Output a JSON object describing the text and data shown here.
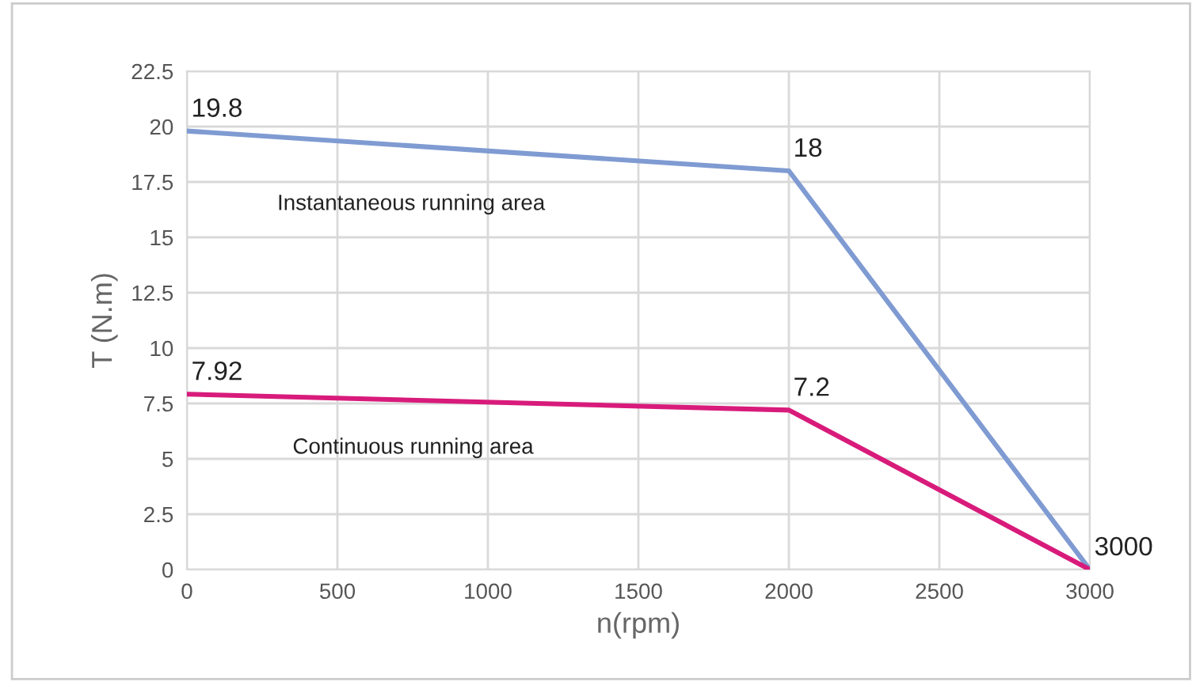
{
  "chart_data": {
    "type": "line",
    "xlabel": "n(rpm)",
    "ylabel": "T (N.m)",
    "x": [
      0,
      2000,
      3000
    ],
    "series": [
      {
        "color": "#7f9bd2",
        "values": [
          19.8,
          18,
          0
        ]
      },
      {
        "color": "#d81b7b",
        "values": [
          7.92,
          7.2,
          0
        ]
      }
    ],
    "xlim": [
      0,
      3000
    ],
    "xticks": [
      0,
      500,
      1000,
      1500,
      2000,
      2500,
      3000
    ],
    "ylim": [
      0,
      22.5
    ],
    "yticks": [
      0,
      2.5,
      5,
      7.5,
      10,
      12.5,
      15,
      17.5,
      20,
      22.5
    ],
    "grid": true,
    "marker": "none",
    "line_style": "solid",
    "annotations": [
      {
        "text": "19.8",
        "x": 0,
        "y": 19.8
      },
      {
        "text": "18",
        "x": 2000,
        "y": 18
      },
      {
        "text": "7.92",
        "x": 0,
        "y": 7.92
      },
      {
        "text": "7.2",
        "x": 2000,
        "y": 7.2
      },
      {
        "text": "3000",
        "x": 3000,
        "y": 0
      },
      "Instantaneous running area",
      "Continuous running area"
    ]
  }
}
